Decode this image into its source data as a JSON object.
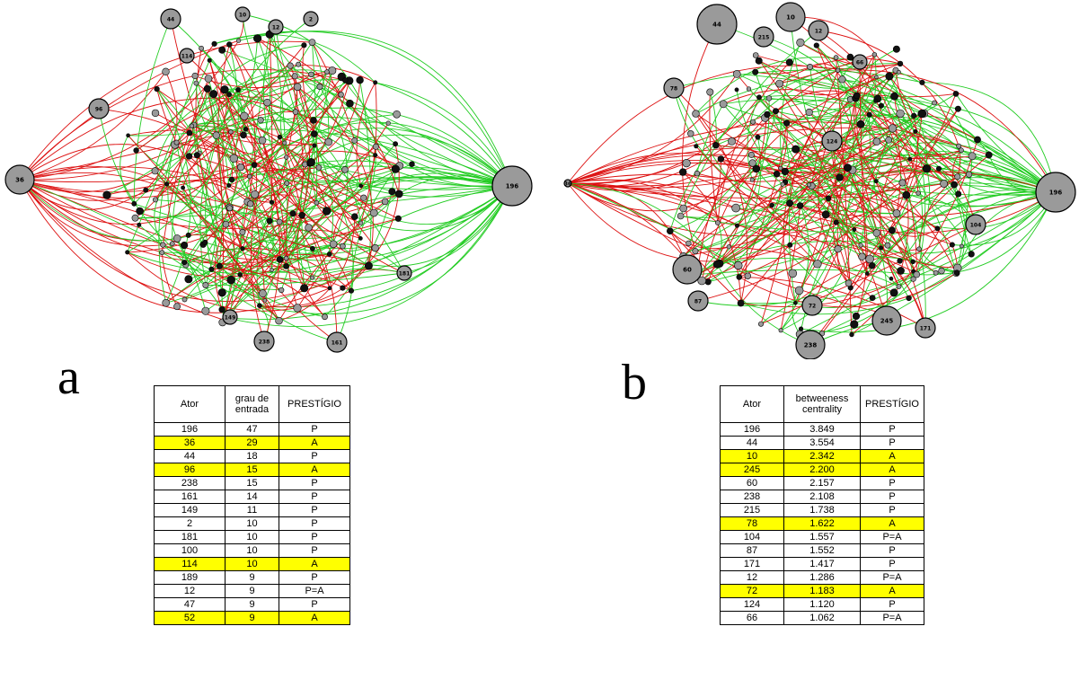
{
  "panel_a": {
    "letter": "a",
    "table": {
      "headers": [
        "Ator",
        "grau de entrada",
        "PRESTÍGIO"
      ],
      "rows": [
        {
          "ator": "196",
          "value": "47",
          "prestigio": "P",
          "highlight": false
        },
        {
          "ator": "36",
          "value": "29",
          "prestigio": "A",
          "highlight": true
        },
        {
          "ator": "44",
          "value": "18",
          "prestigio": "P",
          "highlight": false
        },
        {
          "ator": "96",
          "value": "15",
          "prestigio": "A",
          "highlight": true
        },
        {
          "ator": "238",
          "value": "15",
          "prestigio": "P",
          "highlight": false
        },
        {
          "ator": "161",
          "value": "14",
          "prestigio": "P",
          "highlight": false
        },
        {
          "ator": "149",
          "value": "11",
          "prestigio": "P",
          "highlight": false
        },
        {
          "ator": "2",
          "value": "10",
          "prestigio": "P",
          "highlight": false
        },
        {
          "ator": "181",
          "value": "10",
          "prestigio": "P",
          "highlight": false
        },
        {
          "ator": "100",
          "value": "10",
          "prestigio": "P",
          "highlight": false
        },
        {
          "ator": "114",
          "value": "10",
          "prestigio": "A",
          "highlight": true
        },
        {
          "ator": "189",
          "value": "9",
          "prestigio": "P",
          "highlight": false
        },
        {
          "ator": "12",
          "value": "9",
          "prestigio": "P=A",
          "highlight": false
        },
        {
          "ator": "47",
          "value": "9",
          "prestigio": "P",
          "highlight": false
        },
        {
          "ator": "52",
          "value": "9",
          "prestigio": "A",
          "highlight": true
        }
      ]
    },
    "graph": {
      "hubs": [
        {
          "label": "196",
          "size": "xl"
        },
        {
          "label": "36",
          "size": "l"
        },
        {
          "label": "44",
          "size": "m"
        },
        {
          "label": "96",
          "size": "m"
        },
        {
          "label": "238",
          "size": "m"
        },
        {
          "label": "161",
          "size": "m"
        },
        {
          "label": "2",
          "size": "s"
        },
        {
          "label": "10",
          "size": "s"
        },
        {
          "label": "12",
          "size": "s"
        },
        {
          "label": "149",
          "size": "s"
        },
        {
          "label": "181",
          "size": "s"
        },
        {
          "label": "114",
          "size": "s"
        }
      ]
    }
  },
  "panel_b": {
    "letter": "b",
    "table": {
      "headers": [
        "Ator",
        "betweeness centrality",
        "PRESTÍGIO"
      ],
      "rows": [
        {
          "ator": "196",
          "value": "3.849",
          "prestigio": "P",
          "highlight": false
        },
        {
          "ator": "44",
          "value": "3.554",
          "prestigio": "P",
          "highlight": false
        },
        {
          "ator": "10",
          "value": "2.342",
          "prestigio": "A",
          "highlight": true
        },
        {
          "ator": "245",
          "value": "2.200",
          "prestigio": "A",
          "highlight": true
        },
        {
          "ator": "60",
          "value": "2.157",
          "prestigio": "P",
          "highlight": false
        },
        {
          "ator": "238",
          "value": "2.108",
          "prestigio": "P",
          "highlight": false
        },
        {
          "ator": "215",
          "value": "1.738",
          "prestigio": "P",
          "highlight": false
        },
        {
          "ator": "78",
          "value": "1.622",
          "prestigio": "A",
          "highlight": true
        },
        {
          "ator": "104",
          "value": "1.557",
          "prestigio": "P=A",
          "highlight": false
        },
        {
          "ator": "87",
          "value": "1.552",
          "prestigio": "P",
          "highlight": false
        },
        {
          "ator": "171",
          "value": "1.417",
          "prestigio": "P",
          "highlight": false
        },
        {
          "ator": "12",
          "value": "1.286",
          "prestigio": "P=A",
          "highlight": false
        },
        {
          "ator": "72",
          "value": "1.183",
          "prestigio": "A",
          "highlight": true
        },
        {
          "ator": "124",
          "value": "1.120",
          "prestigio": "P",
          "highlight": false
        },
        {
          "ator": "66",
          "value": "1.062",
          "prestigio": "P=A",
          "highlight": false
        }
      ]
    },
    "graph": {
      "hubs": [
        {
          "label": "196",
          "size": "xl"
        },
        {
          "label": "44",
          "size": "xl"
        },
        {
          "label": "10",
          "size": "l"
        },
        {
          "label": "245",
          "size": "l"
        },
        {
          "label": "60",
          "size": "l"
        },
        {
          "label": "238",
          "size": "l"
        },
        {
          "label": "215",
          "size": "m"
        },
        {
          "label": "78",
          "size": "m"
        },
        {
          "label": "104",
          "size": "m"
        },
        {
          "label": "87",
          "size": "m"
        },
        {
          "label": "171",
          "size": "m"
        },
        {
          "label": "12",
          "size": "m"
        },
        {
          "label": "72",
          "size": "m"
        },
        {
          "label": "124",
          "size": "m"
        },
        {
          "label": "66",
          "size": "s"
        },
        {
          "label": "36",
          "size": "xs"
        }
      ]
    }
  },
  "colors": {
    "green_edge": "#22cc22",
    "red_edge": "#dd1111",
    "node_fill": "#9a9a9a",
    "highlight": "#ffff00"
  }
}
